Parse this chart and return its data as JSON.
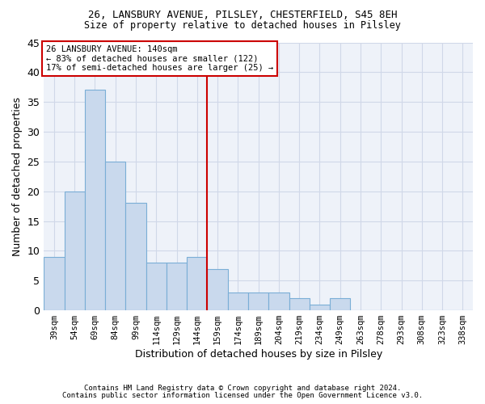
{
  "title1": "26, LANSBURY AVENUE, PILSLEY, CHESTERFIELD, S45 8EH",
  "title2": "Size of property relative to detached houses in Pilsley",
  "xlabel": "Distribution of detached houses by size in Pilsley",
  "ylabel": "Number of detached properties",
  "categories": [
    "39sqm",
    "54sqm",
    "69sqm",
    "84sqm",
    "99sqm",
    "114sqm",
    "129sqm",
    "144sqm",
    "159sqm",
    "174sqm",
    "189sqm",
    "204sqm",
    "219sqm",
    "234sqm",
    "249sqm",
    "263sqm",
    "278sqm",
    "293sqm",
    "308sqm",
    "323sqm",
    "338sqm"
  ],
  "values": [
    9,
    20,
    37,
    25,
    18,
    8,
    8,
    9,
    7,
    3,
    3,
    3,
    2,
    1,
    2,
    0,
    0,
    0,
    0,
    0,
    0
  ],
  "bar_color": "#c9d9ed",
  "bar_edge_color": "#7aaed6",
  "highlight_index": 7,
  "annotation_title": "26 LANSBURY AVENUE: 140sqm",
  "annotation_line1": "← 83% of detached houses are smaller (122)",
  "annotation_line2": "17% of semi-detached houses are larger (25) →",
  "annotation_box_color": "#ffffff",
  "annotation_box_edge": "#cc0000",
  "vline_color": "#cc0000",
  "grid_color": "#d0d8e8",
  "background_color": "#eef2f9",
  "ylim": [
    0,
    45
  ],
  "yticks": [
    0,
    5,
    10,
    15,
    20,
    25,
    30,
    35,
    40,
    45
  ],
  "footnote1": "Contains HM Land Registry data © Crown copyright and database right 2024.",
  "footnote2": "Contains public sector information licensed under the Open Government Licence v3.0."
}
